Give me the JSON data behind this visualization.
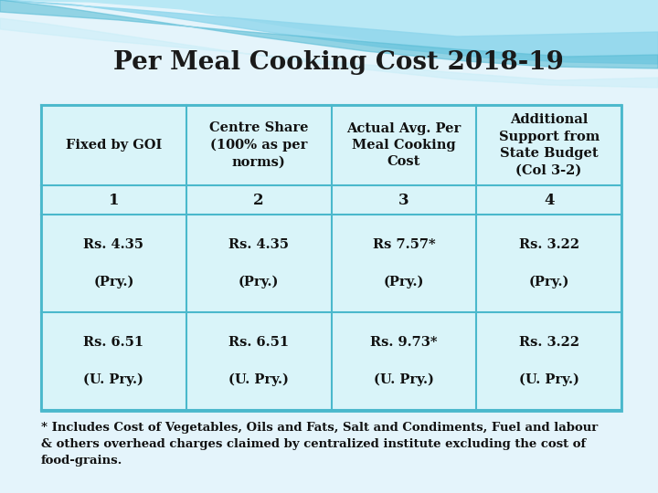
{
  "title": "Per Meal Cooking Cost 2018-19",
  "title_fontsize": 20,
  "title_color": "#1a1a1a",
  "table_bg_color": "#d9f4f9",
  "table_border_color": "#4ab8cc",
  "header_row": [
    "Fixed by GOI",
    "Centre Share\n(100% as per\nnorms)",
    "Actual Avg. Per\nMeal Cooking\nCost",
    "Additional\nSupport from\nState Budget\n(Col 3-2)"
  ],
  "number_row": [
    "1",
    "2",
    "3",
    "4"
  ],
  "data_row1": [
    "Rs. 4.35\n\n(Pry.)",
    "Rs. 4.35\n\n(Pry.)",
    "Rs 7.57*\n\n(Pry.)",
    "Rs. 3.22\n\n(Pry.)"
  ],
  "data_row2": [
    "Rs. 6.51\n\n(U. Pry.)",
    "Rs. 6.51\n\n(U. Pry.)",
    "Rs. 9.73*\n\n(U. Pry.)",
    "Rs. 3.22\n\n(U. Pry.)"
  ],
  "footnote": "* Includes Cost of Vegetables, Oils and Fats, Salt and Condiments, Fuel and labour\n& others overhead charges claimed by centralized institute excluding the cost of\nfood-grains.",
  "footnote_fontsize": 9.5,
  "cell_text_fontsize": 10.5,
  "header_fontsize": 10.5,
  "number_fontsize": 12,
  "bg_color": "#e4f4fb",
  "wave1_color": "#a8dff0",
  "wave2_color": "#c5ecf7",
  "wave3_color": "#7ecfe8"
}
